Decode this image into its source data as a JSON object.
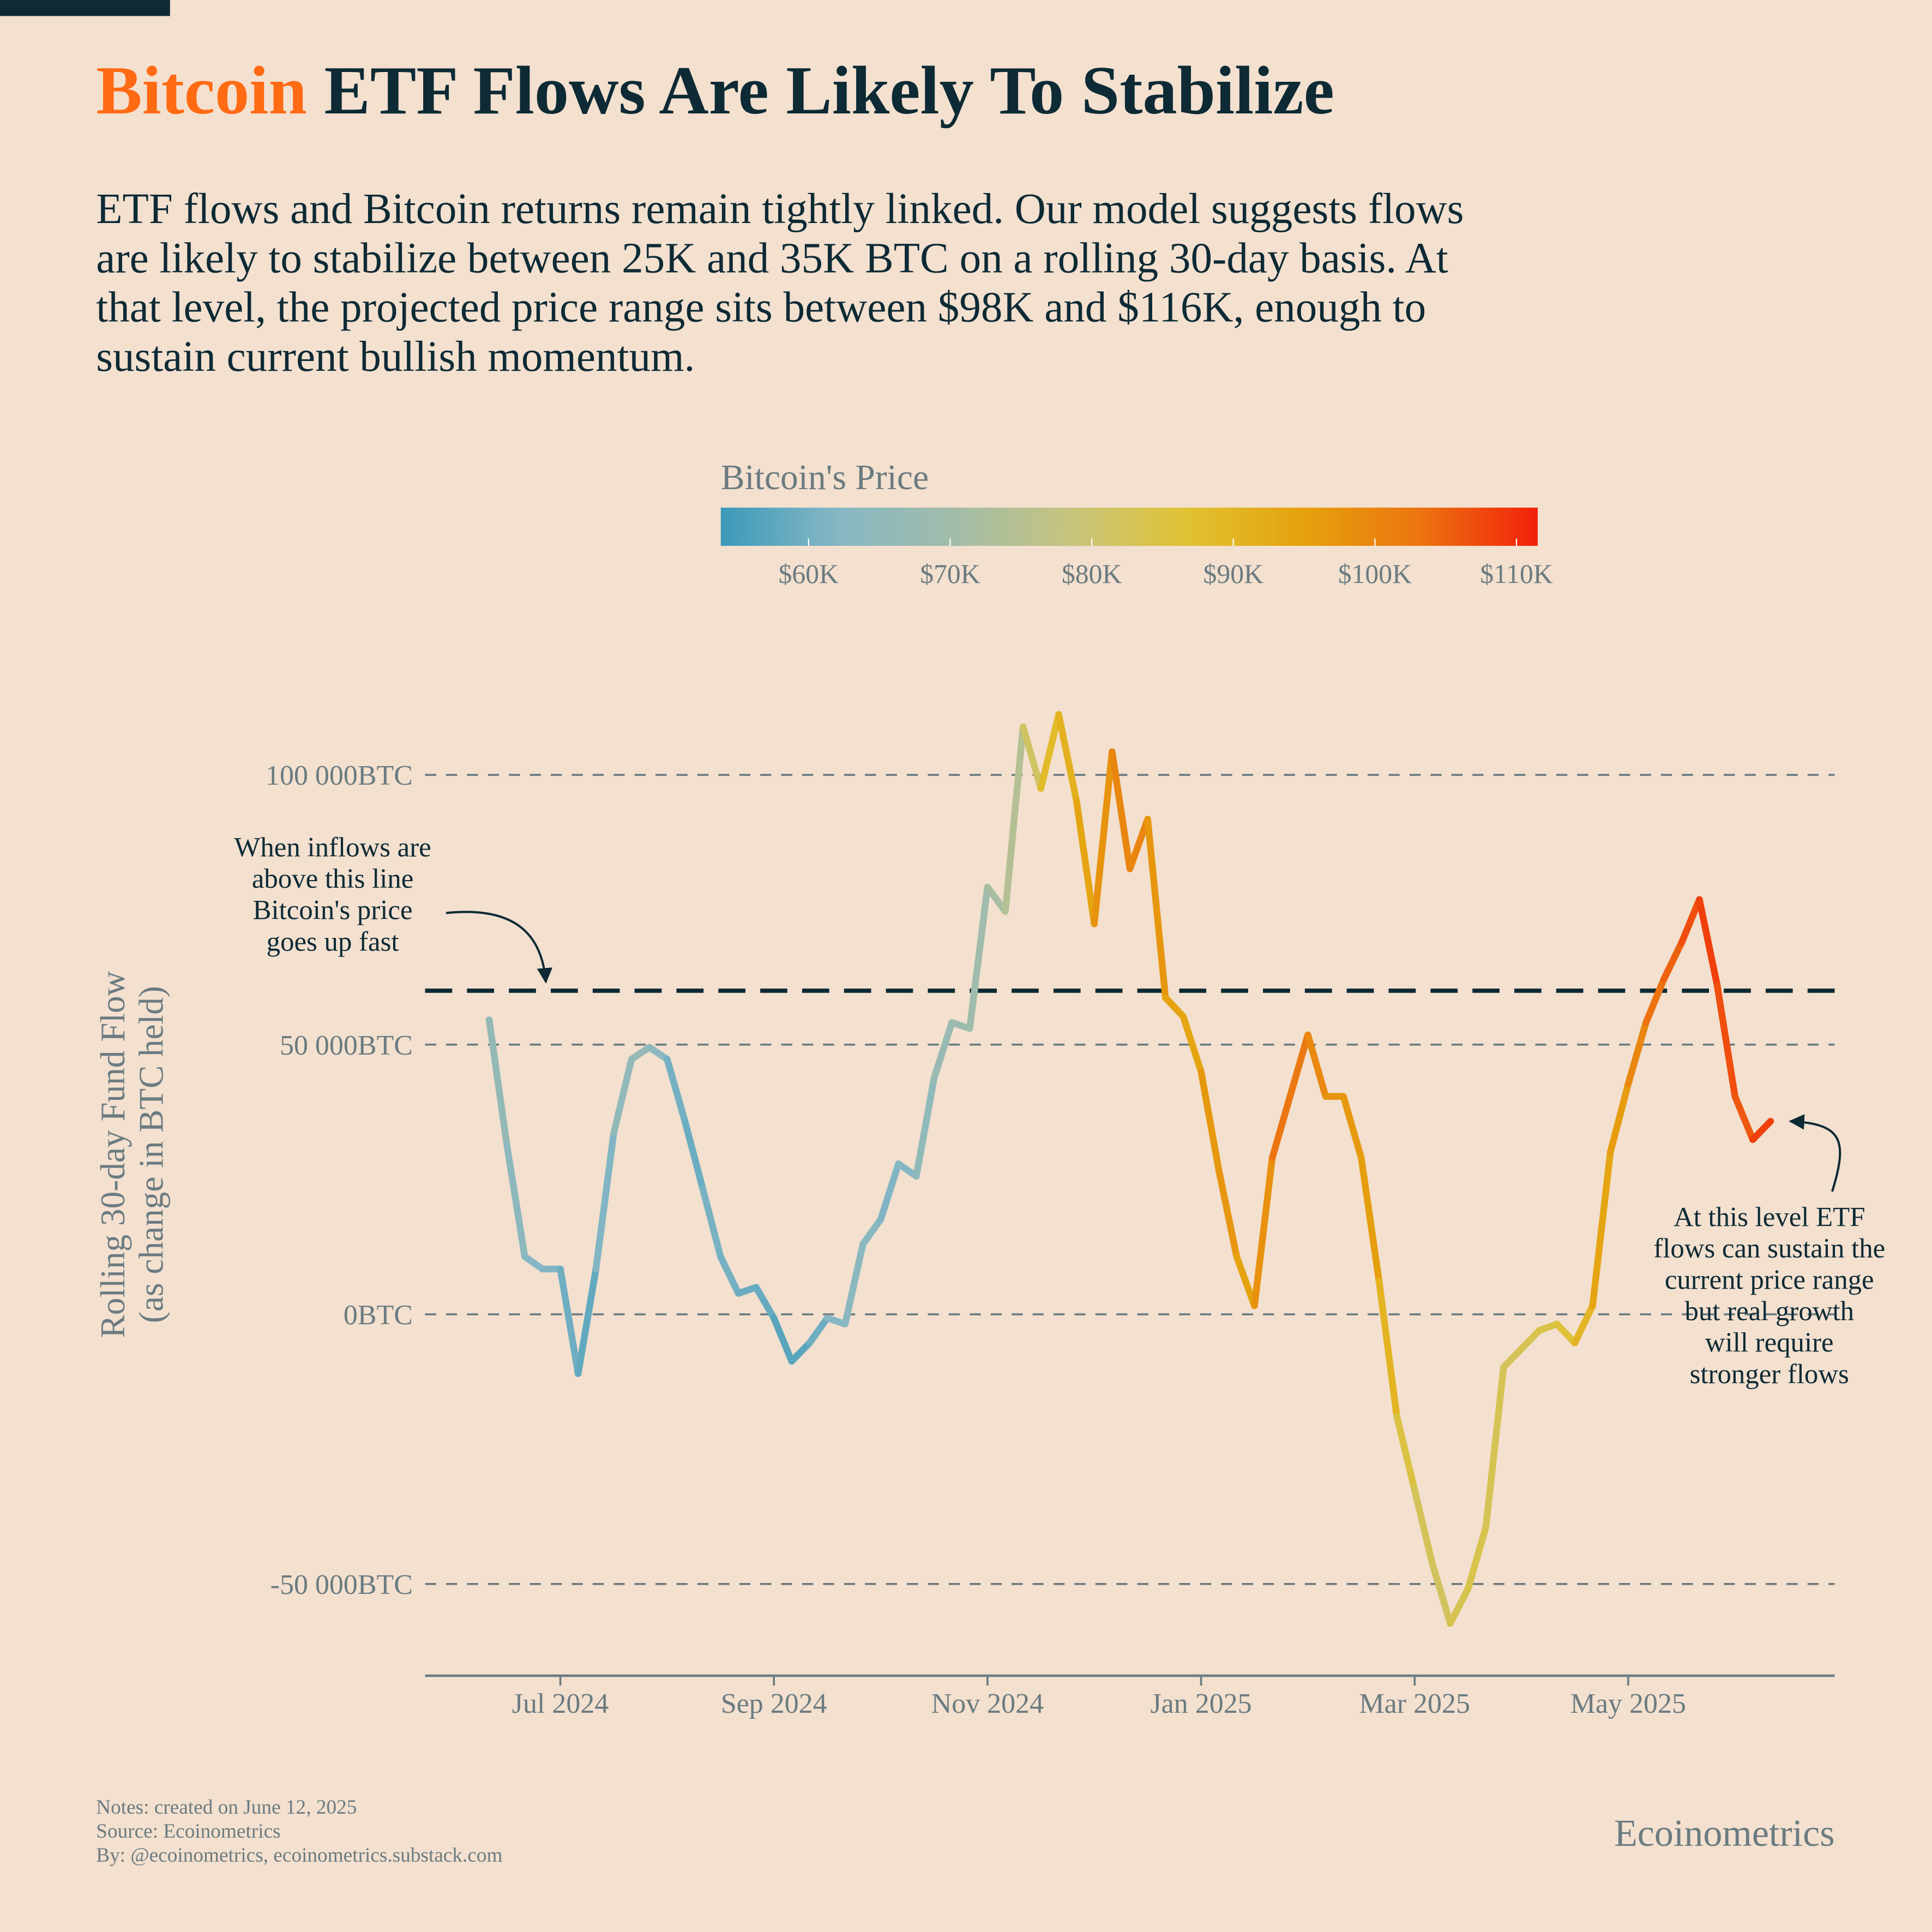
{
  "chart_data": {
    "type": "line",
    "title_highlight": "Bitcoin",
    "title_highlight_color": "#ff6a13",
    "title": "ETF Flows Are Likely To Stabilize",
    "subtitle": [
      "ETF flows and Bitcoin returns remain tightly linked. Our model suggests flows",
      "are likely to stabilize between 25K and 35K BTC on a rolling 30-day basis. At",
      "that level, the projected price range sits between $98K and $116K, enough to",
      "sustain current bullish momentum."
    ],
    "colorbar_title": "Bitcoin's Price",
    "color_range": [
      53800,
      111500
    ],
    "colors": [
      "#3b9ab9",
      "#86b7c4",
      "#a2bca9",
      "#c6c47e",
      "#e1c232",
      "#e5a10d",
      "#ec7410",
      "#f2200a"
    ],
    "colorbar_ticks": [
      {
        "value": 60000,
        "label": "$60K"
      },
      {
        "value": 70000,
        "label": "$70K"
      },
      {
        "value": 80000,
        "label": "$80K"
      },
      {
        "value": 90000,
        "label": "$90K"
      },
      {
        "value": 100000,
        "label": "$100K"
      },
      {
        "value": 110000,
        "label": "$110K"
      }
    ],
    "y_label": [
      "Rolling 30-day Fund Flow",
      "(as change in BTC held)"
    ],
    "categories": [
      null,
      null,
      null,
      null,
      "Jul 2024",
      null,
      null,
      null,
      null,
      null,
      null,
      null,
      null,
      null,
      null,
      null,
      "Sep 2024",
      null,
      null,
      null,
      null,
      null,
      null,
      null,
      null,
      null,
      null,
      null,
      "Nov 2024",
      null,
      null,
      null,
      null,
      null,
      null,
      null,
      null,
      null,
      null,
      null,
      "Jan 2025",
      null,
      null,
      null,
      null,
      null,
      null,
      null,
      null,
      null,
      null,
      null,
      "Mar 2025",
      null,
      null,
      null,
      null,
      null,
      null,
      null,
      null,
      null,
      null,
      null,
      "May 2025",
      null,
      null,
      null,
      null,
      null,
      null,
      null,
      null
    ],
    "series": [
      {
        "values": [
          54600,
          31300,
          10700,
          8400,
          8400,
          -11000,
          8400,
          33600,
          47300,
          49500,
          47300,
          35800,
          23300,
          10700,
          3900,
          5000,
          -700,
          -8700,
          -5300,
          -700,
          -1800,
          13000,
          17600,
          27900,
          25600,
          43800,
          54100,
          53000,
          79200,
          74700,
          108900,
          97500,
          111200,
          95200,
          72400,
          104300,
          82600,
          91800,
          58700,
          55200,
          45000,
          26700,
          10700,
          1600,
          29000,
          40400,
          51800,
          40400,
          40400,
          29000,
          6200,
          -18900,
          -32600,
          -46300,
          -57300,
          -50900,
          -39500,
          -9800,
          -6400,
          -3000,
          -1800,
          -5300,
          1600,
          30100,
          42700,
          54100,
          62100,
          68900,
          76900,
          61000,
          40400,
          32400,
          35800
        ],
        "price": [
          67000,
          65000,
          63000,
          61000,
          62000,
          57000,
          59000,
          64000,
          67000,
          66000,
          62000,
          58000,
          60000,
          61000,
          59000,
          59000,
          58000,
          56000,
          58000,
          61000,
          63000,
          64000,
          62000,
          61000,
          63000,
          67000,
          68000,
          69000,
          70000,
          73000,
          76000,
          87000,
          90000,
          92000,
          96000,
          99000,
          101000,
          99000,
          95000,
          94000,
          94000,
          99000,
          95000,
          94000,
          102000,
          104000,
          101000,
          98000,
          97000,
          96000,
          95000,
          86000,
          84000,
          81000,
          83000,
          84000,
          84000,
          82000,
          83000,
          84000,
          85000,
          87000,
          93000,
          95000,
          97000,
          103000,
          104000,
          106000,
          108000,
          109000,
          105000,
          107000,
          110000
        ]
      }
    ],
    "ylim": [
      -67000,
      121000
    ],
    "yticks": [
      {
        "value": 100000,
        "label": "100 000BTC"
      },
      {
        "value": 50000,
        "label": "50 000BTC"
      },
      {
        "value": 0,
        "label": "0BTC"
      },
      {
        "value": -50000,
        "label": "-50 000BTC"
      }
    ],
    "grid": true,
    "reference_line": {
      "value": 60000,
      "color": "#0d2a35"
    },
    "annotations": [
      {
        "text": [
          "When inflows are",
          "above this line",
          "Bitcoin's price",
          "goes up fast"
        ]
      },
      {
        "text": [
          "At this level ETF",
          "flows can sustain the",
          "current price range",
          "but real growth",
          "will require",
          "stronger flows"
        ]
      }
    ],
    "notes": [
      "Notes: created on June 12, 2025",
      "Source: Ecoinometrics",
      "By: @ecoinometrics, ecoinometrics.substack.com"
    ],
    "brand": "Ecoinometrics"
  }
}
